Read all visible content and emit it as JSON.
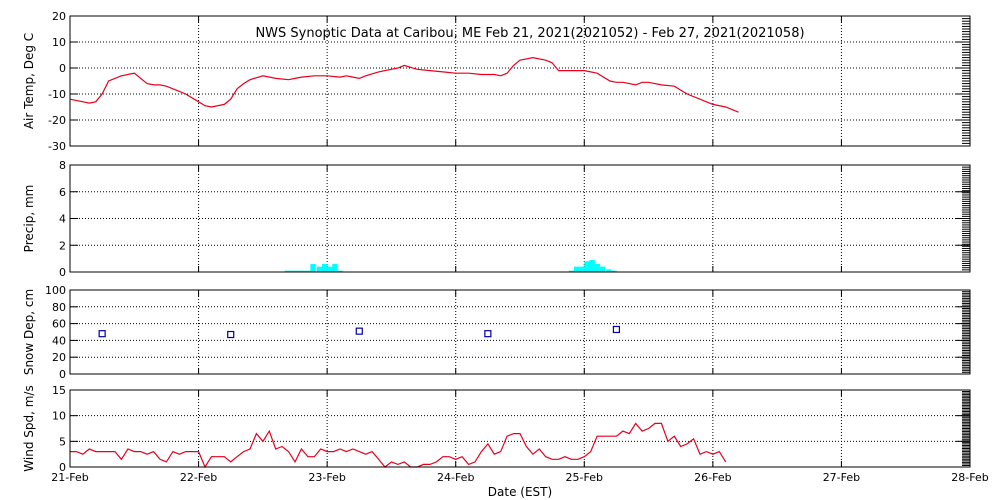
{
  "colors": {
    "temp": "#e8001c",
    "precip": "#00ffff",
    "snow": "#0000aa",
    "wind": "#e8001c",
    "axes": "#000000"
  },
  "title": "NWS Synoptic Data at Caribou, ME   Feb 21, 2021(2021052) - Feb 27, 2021(2021058)",
  "x_axis": {
    "label": "Date (EST)",
    "range_days": [
      0,
      7
    ],
    "tick_labels": [
      "21-Feb",
      "22-Feb",
      "23-Feb",
      "24-Feb",
      "25-Feb",
      "26-Feb",
      "27-Feb",
      "28-Feb"
    ]
  },
  "chart_data": [
    {
      "type": "line",
      "ylabel": "Air Temp, Deg C",
      "ylim": [
        -30,
        20
      ],
      "yticks": [
        -30,
        -20,
        -10,
        0,
        10,
        20
      ],
      "x": [
        0,
        0.1,
        0.15,
        0.2,
        0.25,
        0.3,
        0.4,
        0.5,
        0.6,
        0.65,
        0.7,
        0.75,
        0.8,
        0.9,
        1.0,
        1.05,
        1.1,
        1.2,
        1.25,
        1.3,
        1.35,
        1.4,
        1.5,
        1.6,
        1.7,
        1.75,
        1.8,
        1.9,
        2.0,
        2.1,
        2.15,
        2.2,
        2.25,
        2.3,
        2.4,
        2.5,
        2.55,
        2.6,
        2.7,
        2.8,
        2.9,
        3.0,
        3.1,
        3.2,
        3.3,
        3.35,
        3.4,
        3.45,
        3.5,
        3.6,
        3.7,
        3.75,
        3.8,
        3.9,
        4.0,
        4.1,
        4.2,
        4.25,
        4.3,
        4.4,
        4.45,
        4.5,
        4.6,
        4.7,
        4.8,
        4.9,
        5.0,
        5.1,
        5.2
      ],
      "values": [
        -12,
        -13,
        -13.5,
        -13,
        -10,
        -5,
        -3,
        -2,
        -6,
        -6.5,
        -6.5,
        -7,
        -8,
        -10,
        -13,
        -14.5,
        -15,
        -14,
        -12,
        -8,
        -6,
        -4.5,
        -3,
        -4,
        -4.5,
        -4,
        -3.5,
        -3,
        -3,
        -3.5,
        -3,
        -3.5,
        -4,
        -3,
        -1.5,
        -0.5,
        0,
        1,
        -0.5,
        -1,
        -1.5,
        -2,
        -2,
        -2.5,
        -2.5,
        -3,
        -2,
        1,
        3,
        4,
        3,
        2,
        -1,
        -1,
        -1,
        -2,
        -5,
        -5.5,
        -5.5,
        -6.5,
        -5.5,
        -5.5,
        -6.5,
        -7,
        -10,
        -12,
        -14,
        -15,
        -17
      ]
    },
    {
      "type": "bar",
      "ylabel": "Precip, mm",
      "ylim": [
        0,
        8
      ],
      "yticks": [
        0,
        2,
        4,
        6,
        8
      ],
      "bin_width_days": 0.0417,
      "x": [
        1.67,
        1.71,
        1.75,
        1.79,
        1.83,
        1.87,
        1.92,
        1.96,
        2.0,
        2.04,
        2.08,
        3.88,
        3.92,
        3.96,
        4.0,
        4.04,
        4.08,
        4.12,
        4.17,
        4.21
      ],
      "values": [
        0.1,
        0.1,
        0.1,
        0.1,
        0.1,
        0.6,
        0.4,
        0.6,
        0.4,
        0.6,
        0.1,
        0.1,
        0.4,
        0.4,
        0.8,
        0.9,
        0.6,
        0.4,
        0.2,
        0.1
      ]
    },
    {
      "type": "scatter",
      "ylabel": "Snow Dep, cm",
      "ylim": [
        0,
        100
      ],
      "yticks": [
        0,
        20,
        40,
        60,
        80,
        100
      ],
      "x": [
        0.25,
        1.25,
        2.25,
        3.25,
        4.25
      ],
      "values": [
        48,
        47,
        51,
        48,
        53
      ]
    },
    {
      "type": "line",
      "ylabel": "Wind Spd, m/s",
      "ylim": [
        0,
        15
      ],
      "yticks": [
        0,
        5,
        10,
        15
      ],
      "x": [
        0,
        0.05,
        0.1,
        0.15,
        0.2,
        0.25,
        0.3,
        0.35,
        0.4,
        0.45,
        0.5,
        0.55,
        0.6,
        0.65,
        0.7,
        0.75,
        0.8,
        0.85,
        0.9,
        0.95,
        1.0,
        1.05,
        1.1,
        1.15,
        1.2,
        1.25,
        1.3,
        1.35,
        1.4,
        1.45,
        1.5,
        1.55,
        1.6,
        1.65,
        1.7,
        1.75,
        1.8,
        1.85,
        1.9,
        1.95,
        2.0,
        2.05,
        2.1,
        2.15,
        2.2,
        2.25,
        2.3,
        2.35,
        2.4,
        2.45,
        2.5,
        2.55,
        2.6,
        2.65,
        2.7,
        2.75,
        2.8,
        2.85,
        2.9,
        2.95,
        3.0,
        3.05,
        3.1,
        3.15,
        3.2,
        3.25,
        3.3,
        3.35,
        3.4,
        3.45,
        3.5,
        3.55,
        3.6,
        3.65,
        3.7,
        3.75,
        3.8,
        3.85,
        3.9,
        3.95,
        4.0,
        4.05,
        4.1,
        4.15,
        4.2,
        4.25,
        4.3,
        4.35,
        4.4,
        4.45,
        4.5,
        4.55,
        4.6,
        4.65,
        4.7,
        4.75,
        4.8,
        4.85,
        4.9,
        4.95,
        5.0,
        5.05,
        5.1
      ],
      "values": [
        3,
        3,
        2.5,
        3.5,
        3,
        3,
        3,
        3,
        1.5,
        3.5,
        3,
        3,
        2.5,
        3,
        1.5,
        1,
        3,
        2.5,
        3,
        3,
        3,
        0,
        2,
        2,
        2,
        1,
        2,
        3,
        3.5,
        6.5,
        5,
        7,
        3.5,
        4,
        3,
        1,
        3.5,
        2,
        2,
        3.5,
        3,
        3,
        3.5,
        3,
        3.5,
        3,
        2.5,
        3,
        1.5,
        0,
        1,
        0.5,
        1,
        0,
        0,
        0.5,
        0.5,
        1,
        2,
        2,
        1.5,
        2,
        0.5,
        1,
        3,
        4.5,
        2.5,
        3,
        6,
        6.5,
        6.5,
        4,
        2.5,
        3.5,
        2,
        1.5,
        1.5,
        2,
        1.5,
        1.5,
        2,
        3,
        6,
        6,
        6,
        6,
        7,
        6.5,
        8.5,
        7,
        7.5,
        8.5,
        8.5,
        5,
        6,
        4,
        4.5,
        5.5,
        2.5,
        3,
        2.5,
        3,
        1
      ]
    }
  ]
}
